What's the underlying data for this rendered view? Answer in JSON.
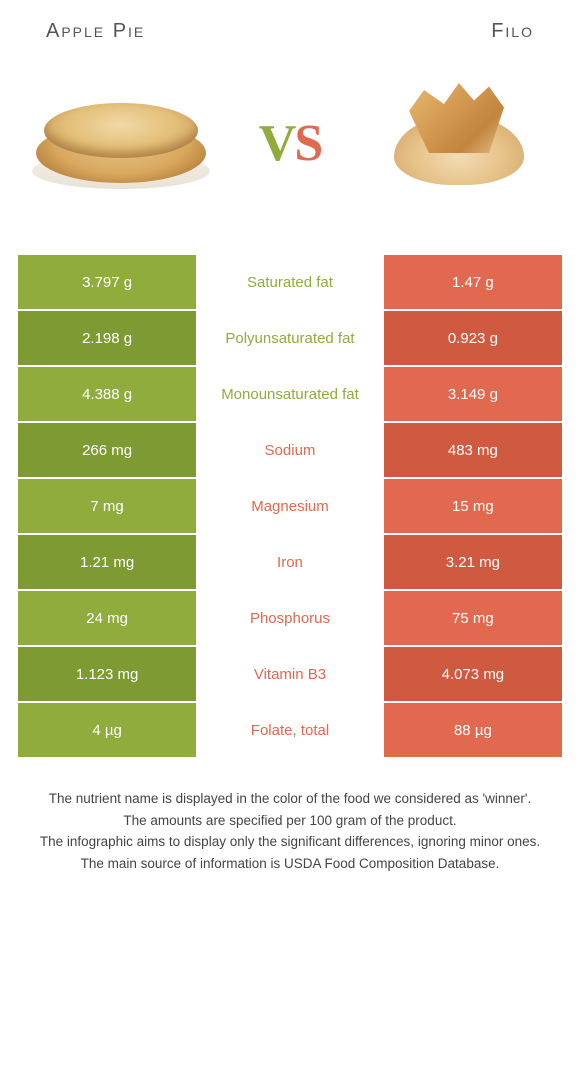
{
  "colors": {
    "green": "#8fac3c",
    "green_dark": "#7e9a33",
    "orange": "#e0694f",
    "orange_dark": "#d05a40",
    "vs_v": "#8fac3c",
    "vs_s": "#e0694f"
  },
  "header": {
    "left_title": "Apple Pie",
    "right_title": "Filo",
    "vs_v": "V",
    "vs_s": "S"
  },
  "rows": [
    {
      "left": "3.797 g",
      "label": "Saturated fat",
      "right": "1.47 g",
      "winner": "left"
    },
    {
      "left": "2.198 g",
      "label": "Polyunsaturated fat",
      "right": "0.923 g",
      "winner": "left"
    },
    {
      "left": "4.388 g",
      "label": "Monounsaturated fat",
      "right": "3.149 g",
      "winner": "left"
    },
    {
      "left": "266 mg",
      "label": "Sodium",
      "right": "483 mg",
      "winner": "right"
    },
    {
      "left": "7 mg",
      "label": "Magnesium",
      "right": "15 mg",
      "winner": "right"
    },
    {
      "left": "1.21 mg",
      "label": "Iron",
      "right": "3.21 mg",
      "winner": "right"
    },
    {
      "left": "24 mg",
      "label": "Phosphorus",
      "right": "75 mg",
      "winner": "right"
    },
    {
      "left": "1.123 mg",
      "label": "Vitamin B3",
      "right": "4.073 mg",
      "winner": "right"
    },
    {
      "left": "4 µg",
      "label": "Folate, total",
      "right": "88 µg",
      "winner": "right"
    }
  ],
  "notes": [
    "The nutrient name is displayed in the color of the food we considered as 'winner'.",
    "The amounts are specified per 100 gram of the product.",
    "The infographic aims to display only the significant differences, ignoring minor ones.",
    "The main source of information is USDA Food Composition Database."
  ]
}
